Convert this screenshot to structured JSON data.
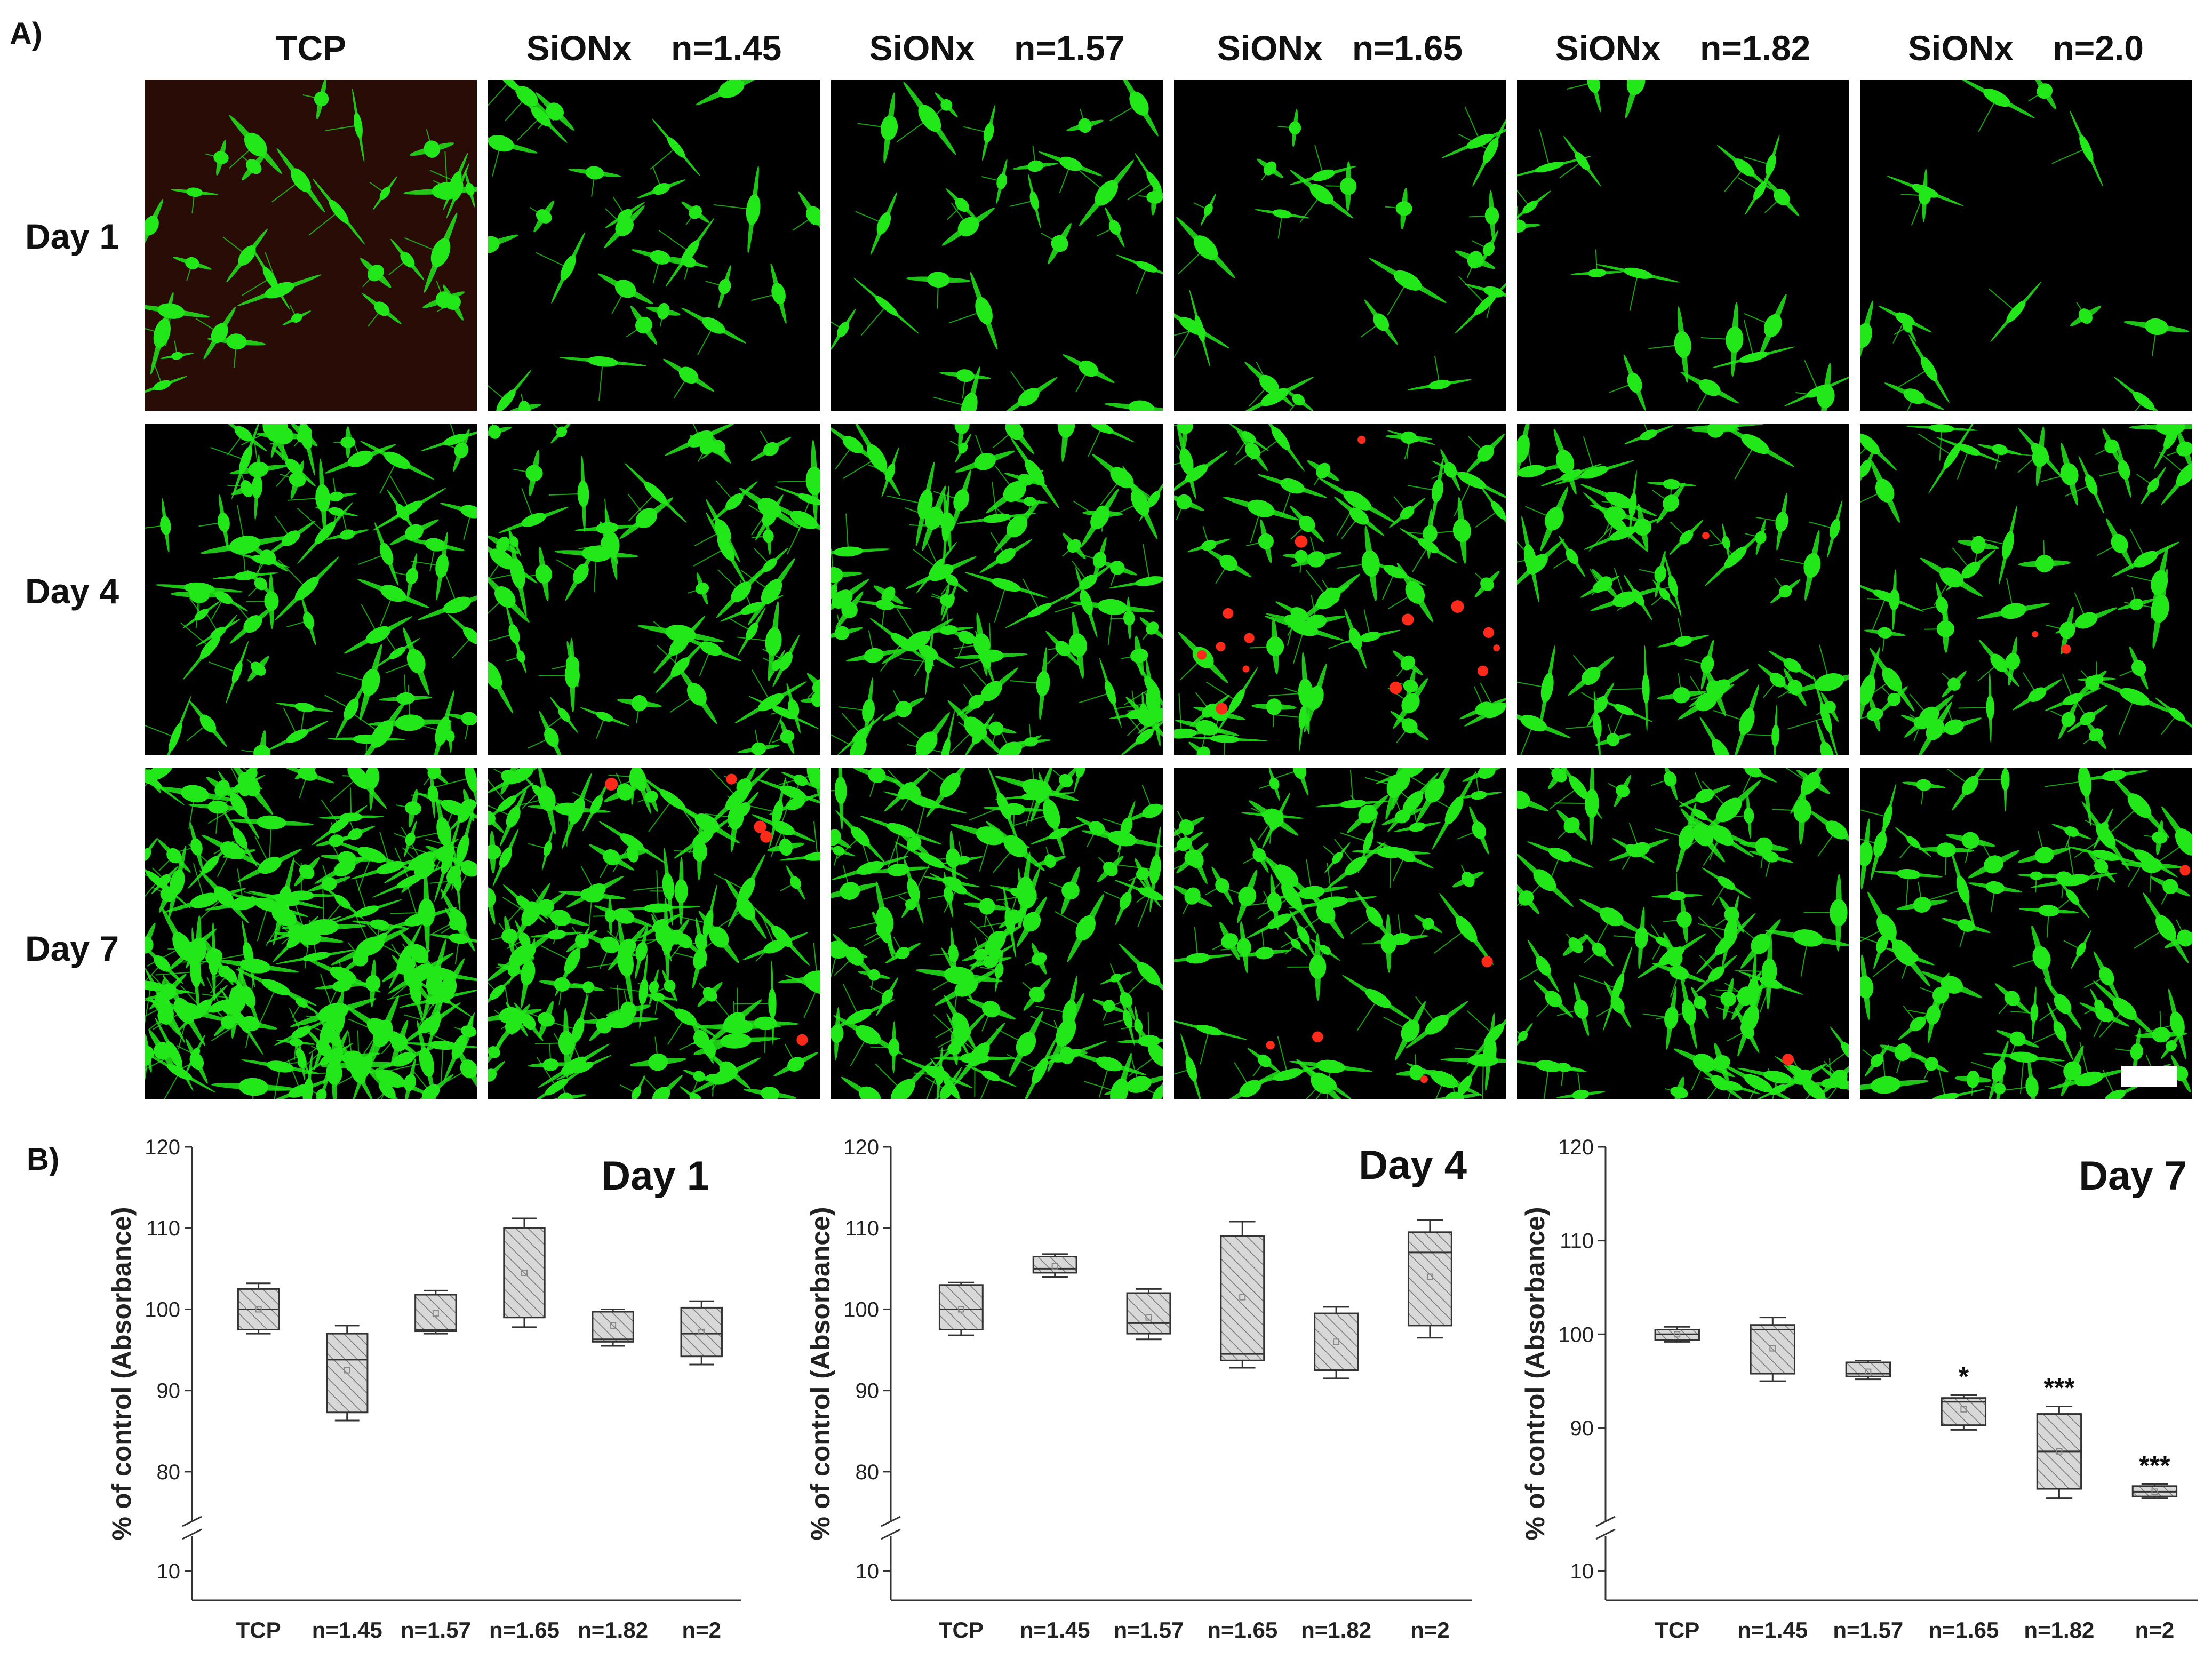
{
  "panel_a_label": "A)",
  "panel_b_label": "B)",
  "columns": [
    "TCP",
    "SiONx    n=1.45",
    "SiONx    n=1.57",
    "SiONx   n=1.65",
    "SiONx    n=1.82",
    "SiONx    n=2.0"
  ],
  "rows": [
    "Day 1",
    "Day 4",
    "Day 7"
  ],
  "image_colors": {
    "live": "#22e81a",
    "dead": "#ff2a1a",
    "background": "#000000"
  },
  "chart_data": [
    {
      "type": "boxplot",
      "title": "Day 1",
      "ylabel": "% of control (Absorbance)",
      "categories": [
        "TCP",
        "n=1.45",
        "n=1.57",
        "n=1.65",
        "n=1.82",
        "n=2"
      ],
      "y_axis_break": true,
      "ylim": [
        5,
        120
      ],
      "yticks": [
        10,
        80,
        90,
        100,
        110,
        120
      ],
      "boxes": [
        {
          "min": 97.0,
          "q1": 97.5,
          "median": 100.0,
          "q3": 102.5,
          "max": 103.2,
          "mean": 100.0
        },
        {
          "min": 86.3,
          "q1": 87.3,
          "median": 93.8,
          "q3": 97.0,
          "max": 98.0,
          "mean": 92.5
        },
        {
          "min": 97.0,
          "q1": 97.3,
          "median": 97.5,
          "q3": 101.8,
          "max": 102.3,
          "mean": 99.5
        },
        {
          "min": 97.8,
          "q1": 99.0,
          "median": 99.0,
          "q3": 110.0,
          "max": 111.2,
          "mean": 104.5
        },
        {
          "min": 95.5,
          "q1": 96.0,
          "median": 96.3,
          "q3": 99.7,
          "max": 100.0,
          "mean": 98.0
        },
        {
          "min": 93.2,
          "q1": 94.2,
          "median": 97.0,
          "q3": 100.2,
          "max": 101.0,
          "mean": 97.2
        }
      ]
    },
    {
      "type": "boxplot",
      "title": "Day 4",
      "ylabel": "% of control (Absorbance)",
      "categories": [
        "TCP",
        "n=1.45",
        "n=1.57",
        "n=1.65",
        "n=1.82",
        "n=2"
      ],
      "y_axis_break": true,
      "ylim": [
        5,
        120
      ],
      "yticks": [
        10,
        80,
        90,
        100,
        110,
        120
      ],
      "boxes": [
        {
          "min": 96.8,
          "q1": 97.5,
          "median": 100.0,
          "q3": 103.0,
          "max": 103.3,
          "mean": 100.0
        },
        {
          "min": 104.0,
          "q1": 104.5,
          "median": 105.0,
          "q3": 106.5,
          "max": 106.8,
          "mean": 105.3
        },
        {
          "min": 96.3,
          "q1": 97.0,
          "median": 98.3,
          "q3": 102.0,
          "max": 102.5,
          "mean": 99.0
        },
        {
          "min": 92.8,
          "q1": 93.7,
          "median": 94.5,
          "q3": 109.0,
          "max": 110.8,
          "mean": 101.5
        },
        {
          "min": 91.5,
          "q1": 92.5,
          "median": 92.5,
          "q3": 99.5,
          "max": 100.3,
          "mean": 96.0
        },
        {
          "min": 96.5,
          "q1": 98.0,
          "median": 107.0,
          "q3": 109.5,
          "max": 111.0,
          "mean": 104.0
        }
      ]
    },
    {
      "type": "boxplot",
      "title": "Day 7",
      "ylabel": "% of control (Absorbance)",
      "categories": [
        "TCP",
        "n=1.45",
        "n=1.57",
        "n=1.65",
        "n=1.82",
        "n=2"
      ],
      "y_axis_break": true,
      "ylim": [
        5,
        120
      ],
      "yticks": [
        10,
        90,
        100,
        110,
        120
      ],
      "boxes": [
        {
          "min": 99.2,
          "q1": 99.4,
          "median": 100.0,
          "q3": 100.5,
          "max": 100.8,
          "mean": 100.0,
          "annotation": ""
        },
        {
          "min": 95.0,
          "q1": 95.8,
          "median": 100.5,
          "q3": 101.0,
          "max": 101.8,
          "mean": 98.5,
          "annotation": ""
        },
        {
          "min": 95.2,
          "q1": 95.5,
          "median": 95.8,
          "q3": 97.0,
          "max": 97.2,
          "mean": 96.0,
          "annotation": ""
        },
        {
          "min": 89.8,
          "q1": 90.3,
          "median": 92.8,
          "q3": 93.2,
          "max": 93.5,
          "mean": 92.0,
          "annotation": "*"
        },
        {
          "min": 82.5,
          "q1": 83.5,
          "median": 87.5,
          "q3": 91.5,
          "max": 92.3,
          "mean": 87.5,
          "annotation": "***"
        },
        {
          "min": 82.5,
          "q1": 82.7,
          "median": 83.2,
          "q3": 83.8,
          "max": 84.0,
          "mean": 83.2,
          "annotation": "***"
        }
      ]
    }
  ]
}
